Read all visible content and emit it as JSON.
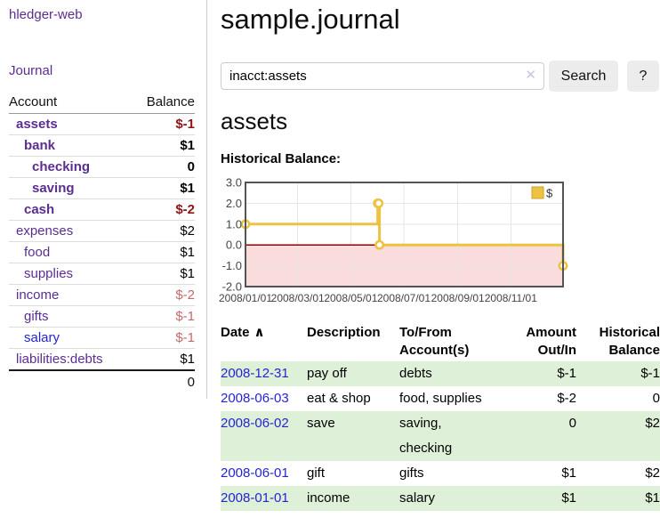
{
  "app": {
    "brand": "hledger-web",
    "nav_journal": "Journal"
  },
  "header": {
    "title": "sample.journal"
  },
  "search": {
    "value": "inacct:assets",
    "clear_icon": "✕",
    "button": "Search",
    "help_button": "?"
  },
  "main": {
    "account_title": "assets",
    "chart_label": "Historical Balance:"
  },
  "colors": {
    "link_purple": "#5c2d91",
    "link_blue": "#2525d0",
    "negative_strong": "#8f1414",
    "negative_muted": "#c46a6a",
    "row_stripe_green": "#dff0d8",
    "chart_line_gold": "#edc240"
  },
  "sidebar": {
    "headers": {
      "account": "Account",
      "balance": "Balance"
    },
    "rows": [
      {
        "name": "assets",
        "balance": "$-1",
        "indent": 1,
        "current": true,
        "balance_class": "neg"
      },
      {
        "name": "bank",
        "balance": "$1",
        "indent": 2,
        "current": true,
        "balance_class": ""
      },
      {
        "name": "checking",
        "balance": "0",
        "indent": 3,
        "current": true,
        "balance_class": ""
      },
      {
        "name": "saving",
        "balance": "$1",
        "indent": 3,
        "current": true,
        "balance_class": ""
      },
      {
        "name": "cash",
        "balance": "$-2",
        "indent": 2,
        "current": true,
        "balance_class": "neg"
      },
      {
        "name": "expenses",
        "balance": "$2",
        "indent": 1,
        "current": false,
        "balance_class": ""
      },
      {
        "name": "food",
        "balance": "$1",
        "indent": 2,
        "current": false,
        "balance_class": ""
      },
      {
        "name": "supplies",
        "balance": "$1",
        "indent": 2,
        "current": false,
        "balance_class": ""
      },
      {
        "name": "income",
        "balance": "$-2",
        "indent": 1,
        "current": false,
        "balance_class": "negmuted"
      },
      {
        "name": "gifts",
        "balance": "$-1",
        "indent": 2,
        "current": false,
        "balance_class": "negmuted"
      },
      {
        "name": "salary",
        "balance": "$-1",
        "indent": 2,
        "current": false,
        "balance_class": "negmuted",
        "link_class": "blue"
      },
      {
        "name": "liabilities:debts",
        "balance": "$1",
        "indent": 1,
        "current": false,
        "balance_class": ""
      }
    ],
    "total": "0"
  },
  "chart_data": {
    "type": "line",
    "title": "Historical Balance",
    "steps": true,
    "series": [
      {
        "name": "$",
        "color": "#edc240",
        "points": [
          {
            "x": "2008-01-01",
            "y": 1.0
          },
          {
            "x": "2008-06-01",
            "y": 2.0
          },
          {
            "x": "2008-06-02",
            "y": 2.0
          },
          {
            "x": "2008-06-03",
            "y": 0.0
          },
          {
            "x": "2008-12-31",
            "y": -1.0
          }
        ]
      }
    ],
    "xrange": [
      "2008-01-01",
      "2008-12-31"
    ],
    "ylim": [
      -2.0,
      3.0
    ],
    "yticks": [
      "3.0",
      "2.0",
      "1.0",
      "0.0",
      "-1.0",
      "-2.0"
    ],
    "xticks": [
      "2008/01/01",
      "2008/03/01",
      "2008/05/01",
      "2008/07/01",
      "2008/09/01",
      "2008/11/01"
    ],
    "grid": true,
    "legend": "$",
    "legend_position": "top-right",
    "negative_fill": "#fbdcdc",
    "zero_line_color": "#8b0000",
    "frame_color": "#545454",
    "grid_color": "#e5e5e5",
    "tick_label_color": "#444444"
  },
  "register": {
    "headers": [
      {
        "label": "Date",
        "sort_icon": "∧",
        "align": "left"
      },
      {
        "label": "Description",
        "align": "left"
      },
      {
        "label": "To/From Account(s)",
        "align": "left"
      },
      {
        "label": "Amount Out/In",
        "align": "right"
      },
      {
        "label": "Historical Balance",
        "align": "right"
      }
    ],
    "rows": [
      {
        "date": "2008-12-31",
        "description": "pay off",
        "accounts": "debts",
        "amount": "$-1",
        "balance": "$-1",
        "amount_neg": true,
        "balance_neg": true,
        "shade": true
      },
      {
        "date": "2008-06-03",
        "description": "eat & shop",
        "accounts": "food, supplies",
        "amount": "$-2",
        "balance": "0",
        "amount_neg": true,
        "balance_neg": false,
        "shade": false
      },
      {
        "date": "2008-06-02",
        "description": "save",
        "accounts": "saving, checking",
        "amount": "0",
        "balance": "$2",
        "amount_neg": false,
        "balance_neg": false,
        "shade": true
      },
      {
        "date": "2008-06-01",
        "description": "gift",
        "accounts": "gifts",
        "amount": "$1",
        "balance": "$2",
        "amount_neg": false,
        "balance_neg": false,
        "shade": false
      },
      {
        "date": "2008-01-01",
        "description": "income",
        "accounts": "salary",
        "amount": "$1",
        "balance": "$1",
        "amount_neg": false,
        "balance_neg": false,
        "shade": true
      }
    ]
  }
}
